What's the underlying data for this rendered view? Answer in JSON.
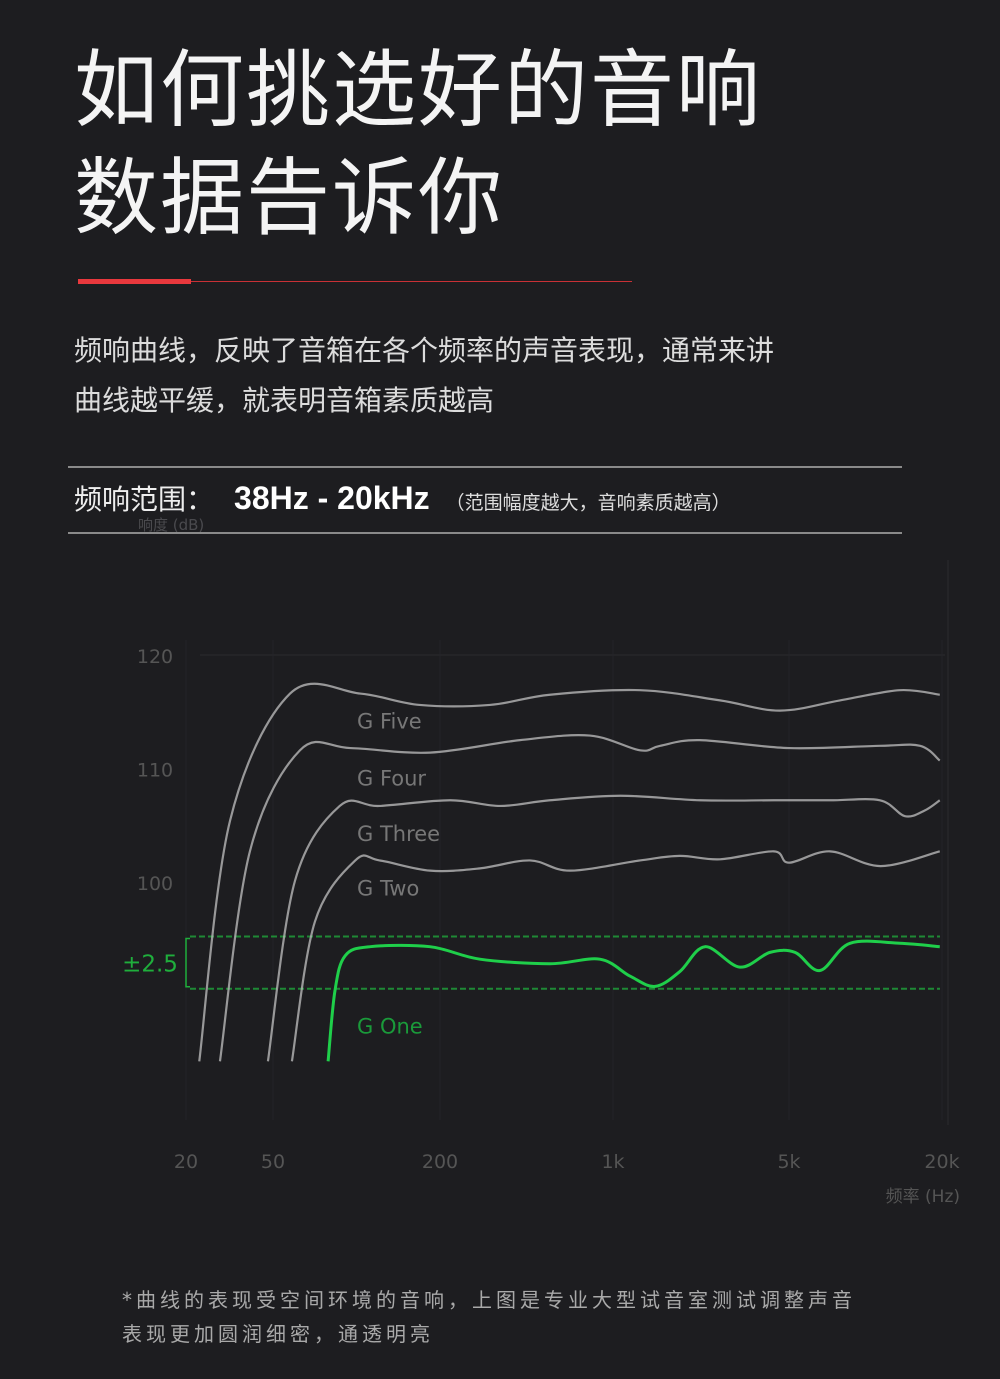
{
  "header": {
    "title_line1": "如何挑选好的音响",
    "title_line2": "数据告诉你",
    "accent_color": "#e8383d"
  },
  "description": {
    "line1": "频响曲线，反映了音箱在各个频率的声音表现，通常来讲",
    "line2": "曲线越平缓，就表明音箱素质越高"
  },
  "range": {
    "label": "频响范围：",
    "value": "38Hz - 20kHz",
    "note": "（范围幅度越大，音响素质越高）"
  },
  "chart_data": {
    "type": "line",
    "title": "",
    "xlabel": "频率 (Hz)",
    "ylabel": "响度 (dB)",
    "x_scale": "log",
    "xlim": [
      20,
      20000
    ],
    "ylim": [
      78,
      127
    ],
    "x_ticks": [
      {
        "value": 20,
        "label": "20"
      },
      {
        "value": 50,
        "label": "50"
      },
      {
        "value": 200,
        "label": "200"
      },
      {
        "value": 1000,
        "label": "1k"
      },
      {
        "value": 5000,
        "label": "5k"
      },
      {
        "value": 20000,
        "label": "20k"
      }
    ],
    "y_ticks": [
      {
        "value": 100,
        "label": "100"
      },
      {
        "value": 110,
        "label": "110"
      },
      {
        "value": 120,
        "label": "120"
      }
    ],
    "tolerance_band": {
      "label": "±2.5",
      "low": 90.6,
      "high": 95.2,
      "color": "#1fae3c"
    },
    "series": [
      {
        "name": "G Five",
        "color": "#b8b8b8",
        "points": [
          [
            23,
            84.2
          ],
          [
            31.8,
            105.4
          ],
          [
            57.6,
            116.6
          ],
          [
            103,
            116.6
          ],
          [
            169,
            115.6
          ],
          [
            318,
            115.6
          ],
          [
            556,
            116.5
          ],
          [
            1280,
            116.9
          ],
          [
            2660,
            116.0
          ],
          [
            4600,
            115.1
          ],
          [
            7930,
            116.0
          ],
          [
            13650,
            116.9
          ],
          [
            19600,
            116.5
          ]
        ]
      },
      {
        "name": "G Four",
        "color": "#b8b8b8",
        "points": [
          [
            28.6,
            84.2
          ],
          [
            39.2,
            102.7
          ],
          [
            62.5,
            111.6
          ],
          [
            95,
            111.8
          ],
          [
            184,
            111.4
          ],
          [
            421,
            112.5
          ],
          [
            807,
            112.9
          ],
          [
            1280,
            111.6
          ],
          [
            1540,
            112.0
          ],
          [
            2210,
            112.5
          ],
          [
            5000,
            111.8
          ],
          [
            11400,
            112.0
          ],
          [
            16400,
            112.0
          ],
          [
            19600,
            110.7
          ]
        ]
      },
      {
        "name": "G Three",
        "color": "#b8b8b8",
        "points": [
          [
            47.4,
            84.2
          ],
          [
            60,
            100.1
          ],
          [
            87,
            106.7
          ],
          [
            121,
            106.7
          ],
          [
            220,
            107.2
          ],
          [
            350,
            106.7
          ],
          [
            556,
            107.2
          ],
          [
            1070,
            107.6
          ],
          [
            2210,
            107.2
          ],
          [
            4350,
            107.2
          ],
          [
            7250,
            107.2
          ],
          [
            11400,
            107.2
          ],
          [
            14300,
            105.8
          ],
          [
            17100,
            106.3
          ],
          [
            19600,
            107.2
          ]
        ]
      },
      {
        "name": "G Two",
        "color": "#b8b8b8",
        "points": [
          [
            58.5,
            84.2
          ],
          [
            70.8,
            96.5
          ],
          [
            99,
            101.9
          ],
          [
            121,
            101.9
          ],
          [
            184,
            101.0
          ],
          [
            290,
            101.2
          ],
          [
            462,
            101.9
          ],
          [
            670,
            101.0
          ],
          [
            1280,
            101.9
          ],
          [
            1840,
            102.3
          ],
          [
            2660,
            102.0
          ],
          [
            4350,
            102.7
          ],
          [
            5000,
            101.7
          ],
          [
            7250,
            102.7
          ],
          [
            11460,
            101.4
          ],
          [
            19600,
            102.7
          ]
        ]
      },
      {
        "name": "G One",
        "color": "#1fcf4a",
        "points": [
          [
            79,
            84.2
          ],
          [
            83.6,
            90.4
          ],
          [
            91,
            93.5
          ],
          [
            112,
            94.3
          ],
          [
            184,
            94.3
          ],
          [
            290,
            93.2
          ],
          [
            556,
            92.8
          ],
          [
            885,
            93.2
          ],
          [
            1170,
            91.7
          ],
          [
            1470,
            90.8
          ],
          [
            1840,
            92.1
          ],
          [
            2320,
            94.3
          ],
          [
            3190,
            92.5
          ],
          [
            4200,
            93.8
          ],
          [
            5280,
            93.8
          ],
          [
            6620,
            92.2
          ],
          [
            8690,
            94.6
          ],
          [
            13650,
            94.6
          ],
          [
            19600,
            94.3
          ]
        ]
      }
    ]
  },
  "footnote": {
    "line1": "*曲线的表现受空间环境的音响，上图是专业大型试音室测试调整声音",
    "line2": "表现更加圆润细密，通透明亮"
  }
}
